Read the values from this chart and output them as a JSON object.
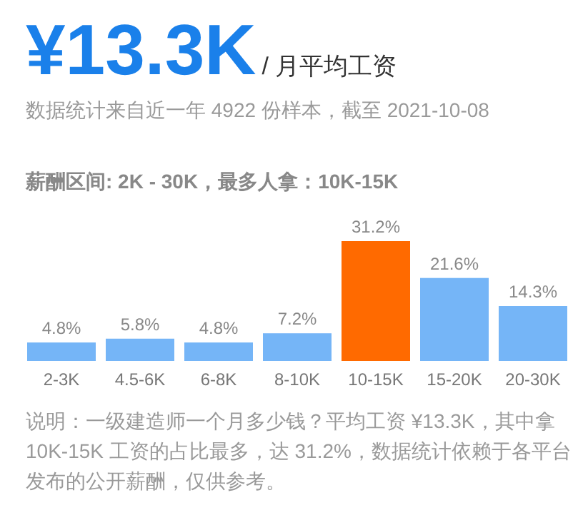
{
  "chart_data": {
    "type": "bar",
    "title": "¥13.3K",
    "subtitle": "/ 月平均工资",
    "annotations": [
      "数据统计来自近一年 4922 份样本，截至 2021-10-08",
      "薪酬区间: 2K - 30K，最多人拿：10K-15K",
      "说明：一级建造师一个月多少钱？平均工资 ¥13.3K，其中拿 10K-15K 工资的占比最多，达 31.2%，数据统计依赖于各平台发布的公开薪酬，仅供参考。"
    ],
    "categories": [
      "2-3K",
      "4.5-6K",
      "6-8K",
      "8-10K",
      "10-15K",
      "15-20K",
      "20-30K"
    ],
    "values": [
      4.8,
      5.8,
      4.8,
      7.2,
      31.2,
      21.6,
      14.3
    ],
    "colors": [
      "#75b5f7",
      "#75b5f7",
      "#75b5f7",
      "#75b5f7",
      "#ff6a00",
      "#75b5f7",
      "#75b5f7"
    ],
    "value_labels": [
      "4.8%",
      "5.8%",
      "4.8%",
      "7.2%",
      "31.2%",
      "21.6%",
      "14.3%"
    ]
  }
}
